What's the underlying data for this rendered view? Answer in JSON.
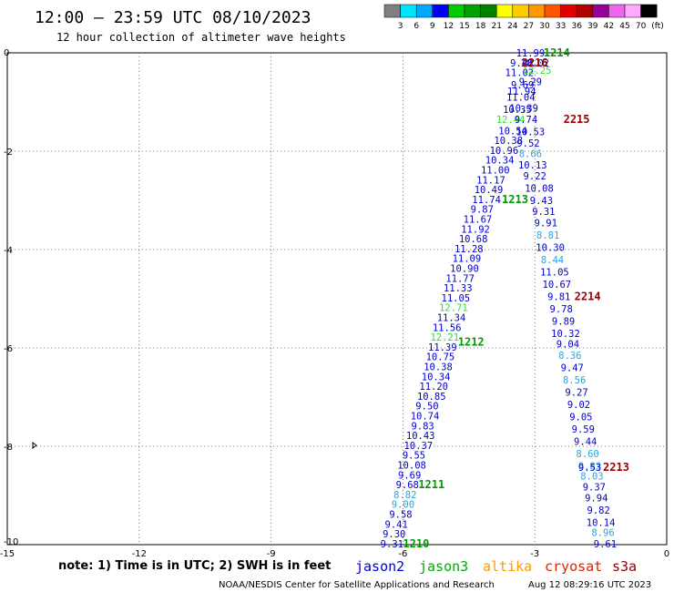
{
  "header": {
    "title": "12:00 – 23:59 UTC 08/10/2023",
    "subtitle": "12 hour collection of altimeter wave heights"
  },
  "colorbar": {
    "unit": "(ft)",
    "labels": [
      "3",
      "6",
      "9",
      "12",
      "15",
      "18",
      "21",
      "24",
      "27",
      "30",
      "33",
      "36",
      "39",
      "42",
      "45",
      "70"
    ],
    "colors": [
      "#7f7f7f",
      "#00e5ff",
      "#00a8ff",
      "#0000ff",
      "#00cc00",
      "#00a000",
      "#008000",
      "#ffff00",
      "#ffcc00",
      "#ff9900",
      "#ff5500",
      "#e00000",
      "#b00000",
      "#990099",
      "#ee66ee",
      "#ffaaff",
      "#000000"
    ]
  },
  "footer": {
    "note": "note:  1) Time is in UTC; 2) SWH is in feet",
    "credit": "NOAA/NESDIS Center for Satellite Applications and Research",
    "timestamp": "Aug 12 08:29:16 UTC 2023"
  },
  "satellites": [
    {
      "name": "jason2",
      "color": "#0000cc"
    },
    {
      "name": "jason3",
      "color": "#00aa00"
    },
    {
      "name": "altika",
      "color": "#ff9900"
    },
    {
      "name": "cryosat",
      "color": "#dd2200"
    },
    {
      "name": "s3a",
      "color": "#990000"
    }
  ],
  "chart_data": {
    "type": "scatter",
    "title": "12:00 – 23:59 UTC 08/10/2023",
    "subtitle": "12 hour collection of altimeter wave heights",
    "xlabel": "",
    "ylabel": "",
    "xlim": [
      -15,
      0
    ],
    "ylim": [
      -10,
      0
    ],
    "x_ticks": [
      "-15",
      "-12",
      "-9",
      "-6",
      "-3",
      "0"
    ],
    "y_ticks": [
      "0",
      "-2",
      "-4",
      "-6",
      "-8",
      "-10"
    ],
    "grid": true,
    "series": [
      {
        "name": "jason3",
        "color": "#000099",
        "points": [
          {
            "x": -3.1,
            "y": -0.0,
            "v": "11.99",
            "c": "#0000cc"
          },
          {
            "x": -3.3,
            "y": -0.2,
            "v": "9.48",
            "c": "#0000cc"
          },
          {
            "x": -3.0,
            "y": -0.2,
            "v": "10.02",
            "c": "#0000cc"
          },
          {
            "x": -3.35,
            "y": -0.4,
            "v": "11.02",
            "c": "#0000cc"
          },
          {
            "x": -2.95,
            "y": -0.35,
            "v": "12.25",
            "c": "#33dd33"
          },
          {
            "x": -3.1,
            "y": -0.58,
            "v": "9.29",
            "c": "#0000cc"
          },
          {
            "x": -3.28,
            "y": -0.65,
            "v": "9.69",
            "c": "#0000cc"
          },
          {
            "x": -3.3,
            "y": -0.78,
            "v": "11.94",
            "c": "#0000cc"
          },
          {
            "x": -3.32,
            "y": -0.9,
            "v": "11.04",
            "c": "#0000cc"
          },
          {
            "x": -3.25,
            "y": -1.12,
            "v": "10.39",
            "c": "#0000cc"
          },
          {
            "x": -3.4,
            "y": -1.15,
            "v": "10.35",
            "c": "#0000cc"
          },
          {
            "x": -3.55,
            "y": -1.35,
            "v": "12.44",
            "c": "#33dd33"
          },
          {
            "x": -3.2,
            "y": -1.35,
            "v": "9.74",
            "c": "#0000cc"
          },
          {
            "x": -3.5,
            "y": -1.58,
            "v": "10.54",
            "c": "#0000cc"
          },
          {
            "x": -3.1,
            "y": -1.6,
            "v": "10.53",
            "c": "#0000cc"
          },
          {
            "x": -3.6,
            "y": -1.78,
            "v": "10.38",
            "c": "#0000cc"
          },
          {
            "x": -3.15,
            "y": -1.83,
            "v": "9.52",
            "c": "#0000cc"
          },
          {
            "x": -3.7,
            "y": -1.98,
            "v": "10.96",
            "c": "#0000cc"
          },
          {
            "x": -3.1,
            "y": -2.05,
            "v": "8.66",
            "c": "#2aa3e0"
          },
          {
            "x": -3.8,
            "y": -2.18,
            "v": "10.34",
            "c": "#0000cc"
          },
          {
            "x": -3.05,
            "y": -2.28,
            "v": "10.13",
            "c": "#0000cc"
          },
          {
            "x": -3.9,
            "y": -2.38,
            "v": "11.00",
            "c": "#0000cc"
          },
          {
            "x": -3.0,
            "y": -2.5,
            "v": "9.22",
            "c": "#0000cc"
          },
          {
            "x": -4.0,
            "y": -2.58,
            "v": "11.17",
            "c": "#0000cc"
          },
          {
            "x": -2.9,
            "y": -2.75,
            "v": "10.08",
            "c": "#0000cc"
          },
          {
            "x": -4.05,
            "y": -2.78,
            "v": "10.49",
            "c": "#0000cc"
          },
          {
            "x": -4.1,
            "y": -2.98,
            "v": "11.74",
            "c": "#0000cc"
          },
          {
            "x": -2.85,
            "y": -3.0,
            "v": "9.43",
            "c": "#0000cc"
          },
          {
            "x": -4.2,
            "y": -3.18,
            "v": "9.87",
            "c": "#0000cc"
          },
          {
            "x": -2.8,
            "y": -3.22,
            "v": "9.31",
            "c": "#0000cc"
          },
          {
            "x": -4.3,
            "y": -3.38,
            "v": "11.67",
            "c": "#0000cc"
          },
          {
            "x": -2.75,
            "y": -3.45,
            "v": "9.91",
            "c": "#0000cc"
          },
          {
            "x": -4.35,
            "y": -3.58,
            "v": "11.92",
            "c": "#0000cc"
          },
          {
            "x": -2.7,
            "y": -3.7,
            "v": "8.81",
            "c": "#2aa3e0"
          },
          {
            "x": -4.4,
            "y": -3.78,
            "v": "10.68",
            "c": "#0000cc"
          },
          {
            "x": -2.65,
            "y": -3.95,
            "v": "10.30",
            "c": "#0000cc"
          },
          {
            "x": -4.5,
            "y": -3.98,
            "v": "11.28",
            "c": "#0000cc"
          },
          {
            "x": -4.55,
            "y": -4.18,
            "v": "11.09",
            "c": "#0000cc"
          },
          {
            "x": -2.6,
            "y": -4.2,
            "v": "8.44",
            "c": "#2aa3e0"
          },
          {
            "x": -4.6,
            "y": -4.38,
            "v": "10.90",
            "c": "#0000cc"
          },
          {
            "x": -2.55,
            "y": -4.45,
            "v": "11.05",
            "c": "#0000cc"
          },
          {
            "x": -4.7,
            "y": -4.58,
            "v": "11.77",
            "c": "#0000cc"
          },
          {
            "x": -2.5,
            "y": -4.7,
            "v": "10.67",
            "c": "#0000cc"
          },
          {
            "x": -4.75,
            "y": -4.78,
            "v": "11.33",
            "c": "#0000cc"
          },
          {
            "x": -2.45,
            "y": -4.95,
            "v": "9.81",
            "c": "#0000cc"
          },
          {
            "x": -4.8,
            "y": -4.98,
            "v": "11.05",
            "c": "#0000cc"
          },
          {
            "x": -4.85,
            "y": -5.18,
            "v": "12.71",
            "c": "#33dd33"
          },
          {
            "x": -2.4,
            "y": -5.2,
            "v": "9.78",
            "c": "#0000cc"
          },
          {
            "x": -4.9,
            "y": -5.38,
            "v": "11.34",
            "c": "#0000cc"
          },
          {
            "x": -2.35,
            "y": -5.45,
            "v": "9.89",
            "c": "#0000cc"
          },
          {
            "x": -5.0,
            "y": -5.58,
            "v": "11.56",
            "c": "#0000cc"
          },
          {
            "x": -2.3,
            "y": -5.7,
            "v": "10.32",
            "c": "#0000cc"
          },
          {
            "x": -5.05,
            "y": -5.78,
            "v": "12.21",
            "c": "#33dd33"
          },
          {
            "x": -2.25,
            "y": -5.92,
            "v": "9.04",
            "c": "#0000cc"
          },
          {
            "x": -5.1,
            "y": -5.98,
            "v": "11.39",
            "c": "#0000cc"
          },
          {
            "x": -2.2,
            "y": -6.15,
            "v": "8.36",
            "c": "#2aa3e0"
          },
          {
            "x": -5.15,
            "y": -6.18,
            "v": "10.75",
            "c": "#0000cc"
          },
          {
            "x": -5.2,
            "y": -6.38,
            "v": "10.38",
            "c": "#0000cc"
          },
          {
            "x": -2.15,
            "y": -6.4,
            "v": "9.47",
            "c": "#0000cc"
          },
          {
            "x": -5.25,
            "y": -6.58,
            "v": "10.34",
            "c": "#0000cc"
          },
          {
            "x": -2.1,
            "y": -6.65,
            "v": "8.56",
            "c": "#2aa3e0"
          },
          {
            "x": -5.3,
            "y": -6.78,
            "v": "11.20",
            "c": "#0000cc"
          },
          {
            "x": -2.05,
            "y": -6.9,
            "v": "9.27",
            "c": "#0000cc"
          },
          {
            "x": -5.35,
            "y": -6.98,
            "v": "10.85",
            "c": "#0000cc"
          },
          {
            "x": -2.0,
            "y": -7.15,
            "v": "9.02",
            "c": "#0000cc"
          },
          {
            "x": -5.45,
            "y": -7.18,
            "v": "9.50",
            "c": "#0000cc"
          },
          {
            "x": -5.5,
            "y": -7.38,
            "v": "10.74",
            "c": "#0000cc"
          },
          {
            "x": -1.95,
            "y": -7.4,
            "v": "9.05",
            "c": "#0000cc"
          },
          {
            "x": -5.55,
            "y": -7.58,
            "v": "9.83",
            "c": "#0000cc"
          },
          {
            "x": -1.9,
            "y": -7.65,
            "v": "9.59",
            "c": "#0000cc"
          },
          {
            "x": -5.6,
            "y": -7.78,
            "v": "10.43",
            "c": "#0000cc"
          },
          {
            "x": -1.85,
            "y": -7.9,
            "v": "9.44",
            "c": "#0000cc"
          },
          {
            "x": -5.65,
            "y": -7.98,
            "v": "10.37",
            "c": "#0000cc"
          },
          {
            "x": -1.8,
            "y": -8.15,
            "v": "8.60",
            "c": "#2aa3e0"
          },
          {
            "x": -5.75,
            "y": -8.18,
            "v": "9.55",
            "c": "#0000cc"
          },
          {
            "x": -5.8,
            "y": -8.38,
            "v": "10.08",
            "c": "#0000cc"
          },
          {
            "x": -1.75,
            "y": -8.4,
            "v": "8.83",
            "c": "#2aa3e0"
          },
          {
            "x": -1.75,
            "y": -8.43,
            "v": "9.53",
            "c": "#0000cc"
          },
          {
            "x": -5.85,
            "y": -8.58,
            "v": "9.69",
            "c": "#0000cc"
          },
          {
            "x": -1.7,
            "y": -8.6,
            "v": "8.03",
            "c": "#2aa3e0"
          },
          {
            "x": -5.9,
            "y": -8.78,
            "v": "9.68",
            "c": "#0000cc"
          },
          {
            "x": -1.65,
            "y": -8.82,
            "v": "9.37",
            "c": "#0000cc"
          },
          {
            "x": -5.95,
            "y": -8.98,
            "v": "8.82",
            "c": "#2aa3e0"
          },
          {
            "x": -1.6,
            "y": -9.05,
            "v": "9.94",
            "c": "#0000cc"
          },
          {
            "x": -6.0,
            "y": -9.18,
            "v": "9.00",
            "c": "#2aa3e0"
          },
          {
            "x": -1.55,
            "y": -9.3,
            "v": "9.82",
            "c": "#0000cc"
          },
          {
            "x": -6.05,
            "y": -9.38,
            "v": "9.58",
            "c": "#0000cc"
          },
          {
            "x": -1.5,
            "y": -9.55,
            "v": "10.14",
            "c": "#0000cc"
          },
          {
            "x": -6.15,
            "y": -9.58,
            "v": "9.41",
            "c": "#0000cc"
          },
          {
            "x": -6.2,
            "y": -9.78,
            "v": "9.30",
            "c": "#0000cc"
          },
          {
            "x": -1.45,
            "y": -9.75,
            "v": "8.96",
            "c": "#2aa3e0"
          },
          {
            "x": -6.25,
            "y": -9.98,
            "v": "9.31",
            "c": "#0000cc"
          },
          {
            "x": -1.4,
            "y": -9.98,
            "v": "9.61",
            "c": "#0000cc"
          }
        ]
      }
    ],
    "pass_labels": [
      {
        "text": "1214",
        "x": -2.5,
        "y": 0.0,
        "color": "#009900"
      },
      {
        "text": "2216",
        "x": -3.0,
        "y": -0.2,
        "color": "#990000"
      },
      {
        "text": "2215",
        "x": -2.05,
        "y": -1.35,
        "color": "#990000"
      },
      {
        "text": "1213",
        "x": -3.45,
        "y": -2.98,
        "color": "#009900"
      },
      {
        "text": "2214",
        "x": -1.8,
        "y": -4.95,
        "color": "#990000"
      },
      {
        "text": "1212",
        "x": -4.45,
        "y": -5.88,
        "color": "#009900"
      },
      {
        "text": "2213",
        "x": -1.15,
        "y": -8.43,
        "color": "#990000"
      },
      {
        "text": "1211",
        "x": -5.35,
        "y": -8.78,
        "color": "#009900"
      },
      {
        "text": "1210",
        "x": -5.7,
        "y": -9.98,
        "color": "#009900"
      }
    ]
  }
}
